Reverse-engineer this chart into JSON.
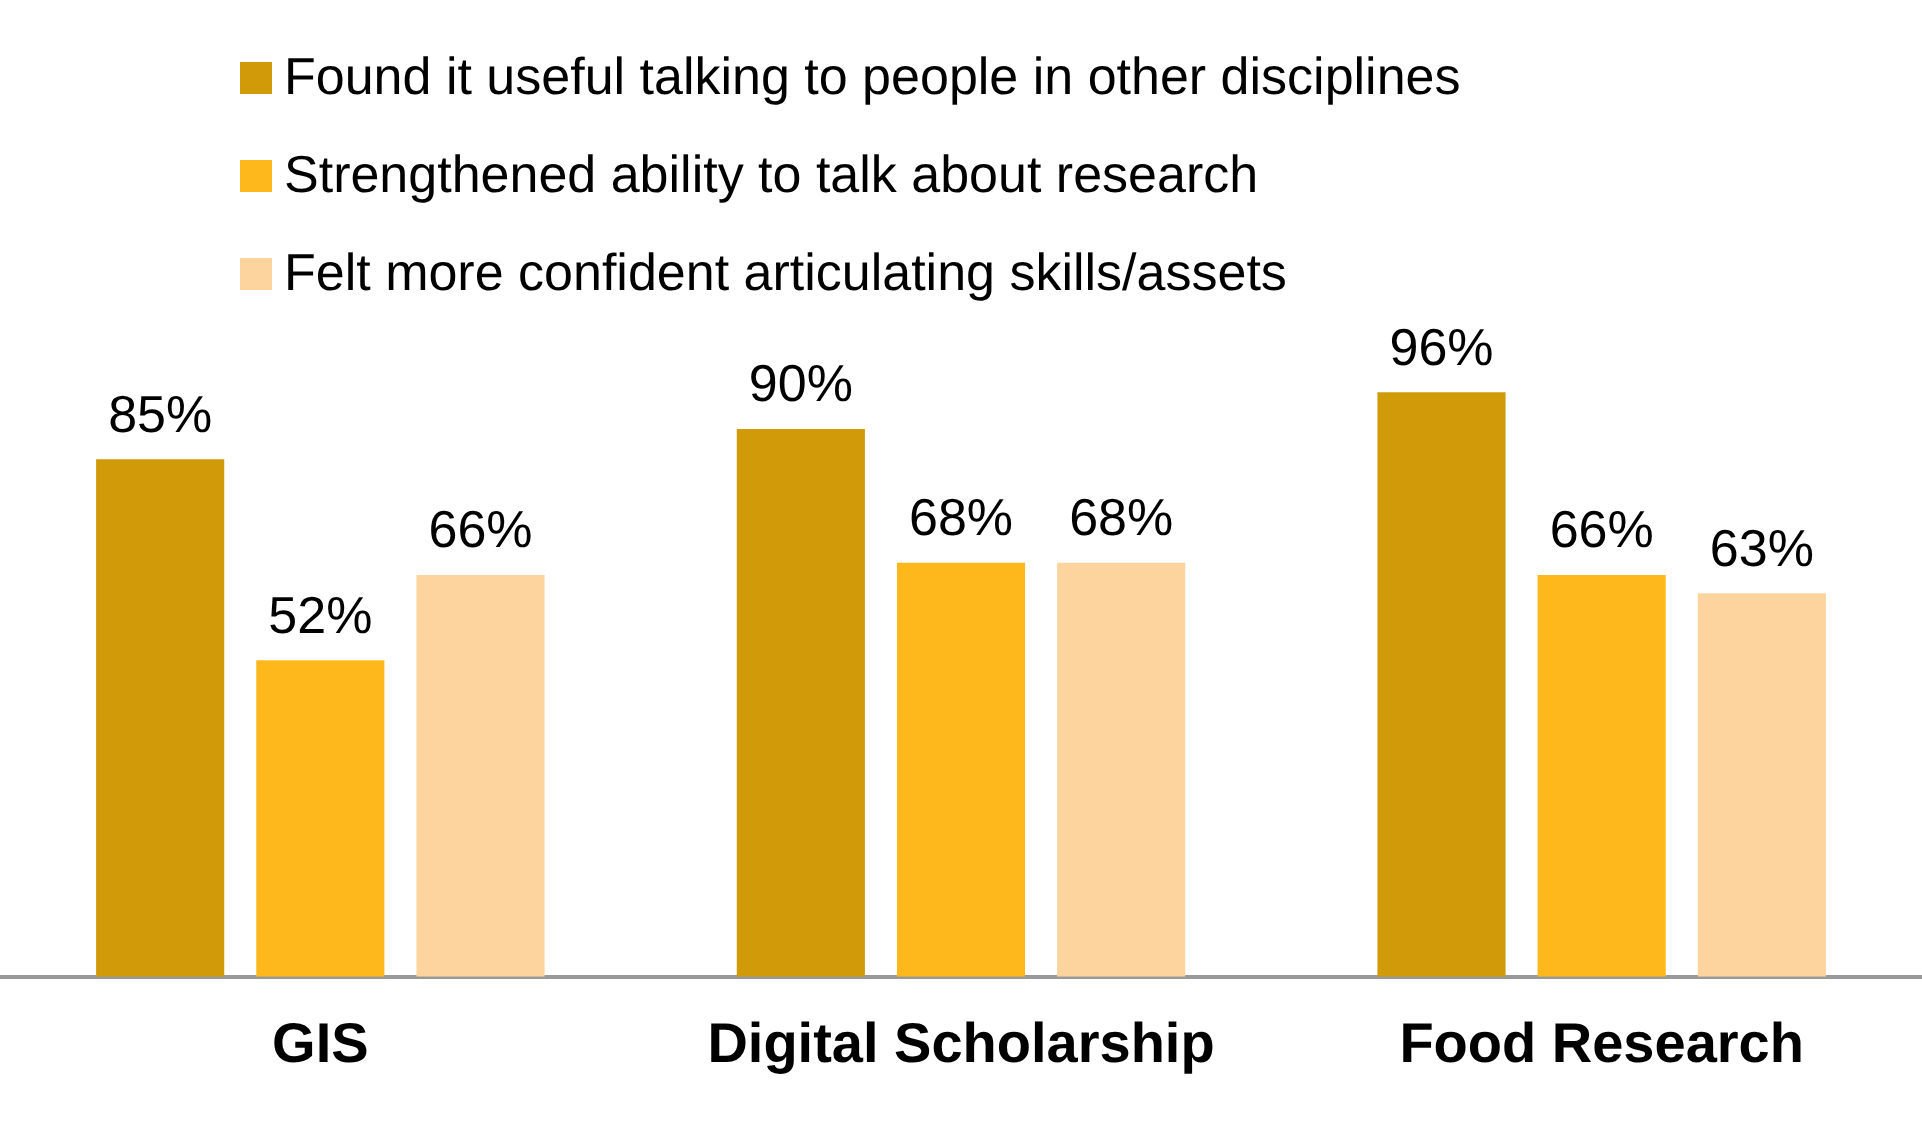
{
  "chart_data": {
    "type": "bar",
    "categories": [
      "GIS",
      "Digital Scholarship",
      "Food Research"
    ],
    "legend": "top",
    "series": [
      {
        "name": "Found it useful talking to people in other disciplines",
        "color": "#d19a08",
        "values": [
          85,
          90,
          96
        ],
        "value_labels": [
          "85%",
          "90%",
          "96%"
        ]
      },
      {
        "name": "Strengthened ability to talk about research",
        "color": "#ffb81c",
        "values": [
          52,
          68,
          66
        ],
        "value_labels": [
          "52%",
          "68%",
          "66%"
        ]
      },
      {
        "name": "Felt more confident articulating skills/assets",
        "color": "#fdd49e",
        "values": [
          66,
          68,
          63
        ],
        "value_labels": [
          "66%",
          "68%",
          "63%"
        ]
      }
    ]
  }
}
